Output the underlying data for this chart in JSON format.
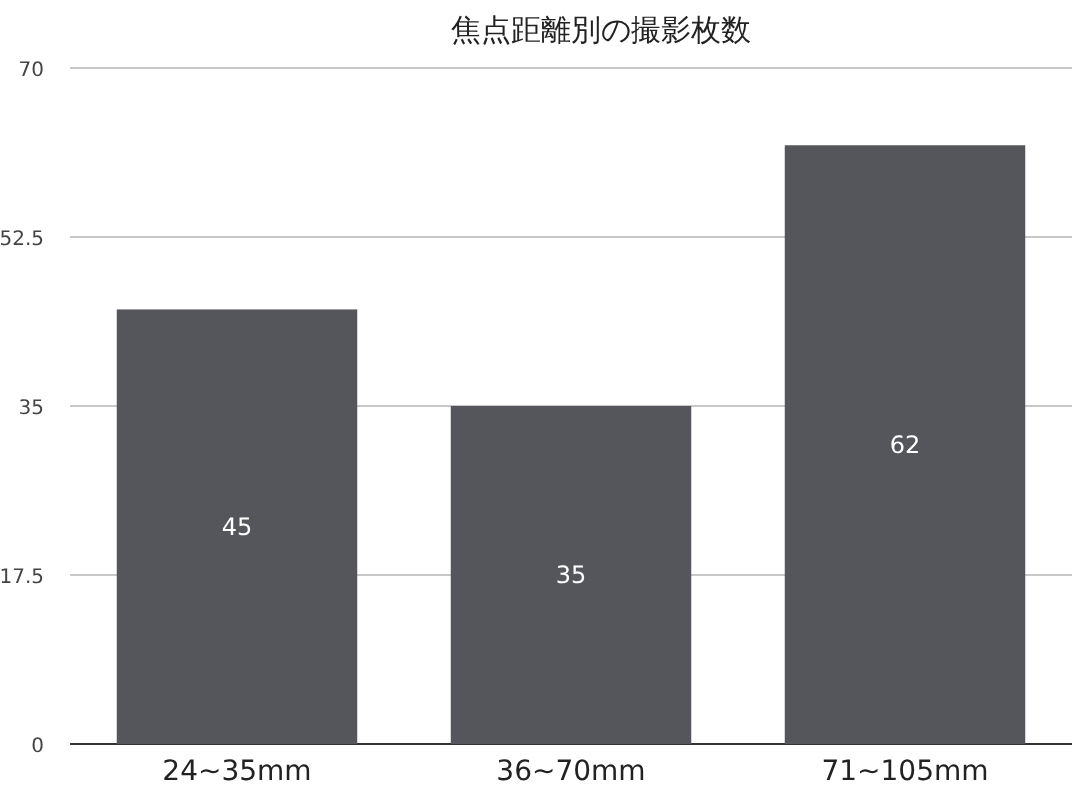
{
  "chart_data": {
    "type": "bar",
    "title": "焦点距離別の撮影枚数",
    "categories": [
      "24~35mm",
      "36~70mm",
      "71~105mm"
    ],
    "values": [
      45,
      35,
      62
    ],
    "color": "#54565b",
    "ylim": [
      0,
      70
    ],
    "yticks": [
      0,
      17.5,
      35,
      52.5,
      70
    ],
    "grid": "y",
    "data_labels": true
  }
}
